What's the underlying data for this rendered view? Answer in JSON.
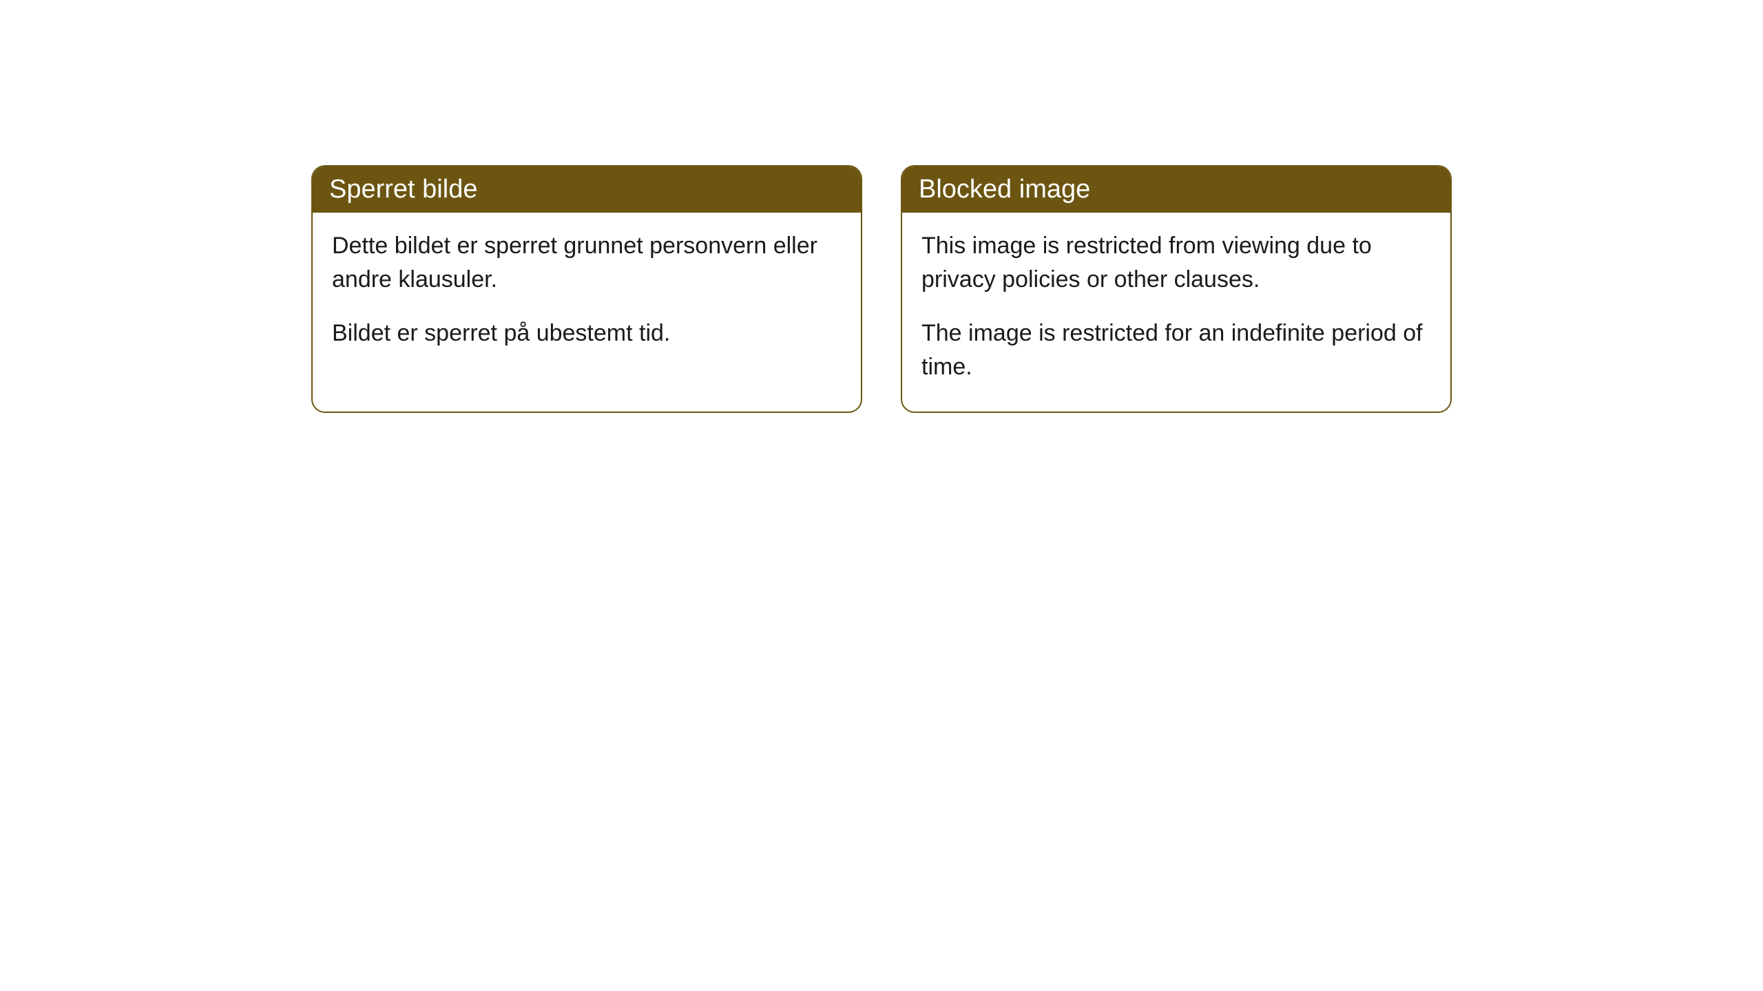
{
  "cards": [
    {
      "title": "Sperret bilde",
      "paragraph1": "Dette bildet er sperret grunnet personvern eller andre klausuler.",
      "paragraph2": "Bildet er sperret på ubestemt tid."
    },
    {
      "title": "Blocked image",
      "paragraph1": "This image is restricted from viewing due to privacy policies or other clauses.",
      "paragraph2": "The image is restricted for an indefinite period of time."
    }
  ],
  "styling": {
    "header_bg_color": "#6b5510",
    "header_text_color": "#ffffff",
    "border_color": "#6b5510",
    "body_bg_color": "#ffffff",
    "body_text_color": "#1a1a1a",
    "border_radius": 20,
    "title_fontsize": 38,
    "body_fontsize": 34
  }
}
